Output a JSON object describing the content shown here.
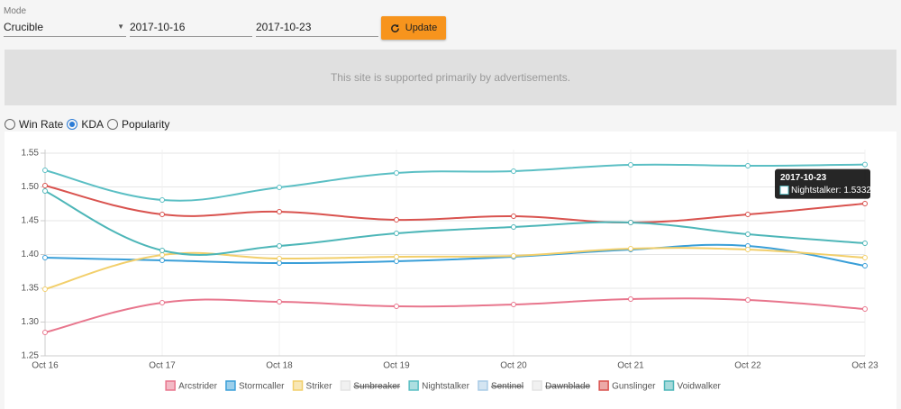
{
  "form": {
    "mode_label": "Mode",
    "mode": "Crucible",
    "start_date": "2017-10-16",
    "end_date": "2017-10-23",
    "button": "Update"
  },
  "ad": "This site is supported primarily by advertisements.",
  "metrics": {
    "options": [
      "Win Rate",
      "KDA",
      "Popularity"
    ],
    "selected": 1
  },
  "chart_data": {
    "type": "line",
    "categories": [
      "Oct 16",
      "Oct 17",
      "Oct 18",
      "Oct 19",
      "Oct 20",
      "Oct 21",
      "Oct 22",
      "Oct 23"
    ],
    "ylim": [
      1.25,
      1.55
    ],
    "yticks": [
      1.25,
      {
        "value": 1.3,
        "label": "1.30"
      },
      1.35,
      {
        "value": 1.4,
        "label": "1.40"
      },
      1.45,
      {
        "value": 1.5,
        "label": "1.50"
      },
      1.55
    ],
    "grid": true,
    "legend": "bottom",
    "series": [
      {
        "name": "Arcstrider",
        "color": "#e8768d",
        "values": [
          1.2847,
          1.3287,
          1.33,
          1.3233,
          1.326,
          1.334,
          1.3327,
          1.3193
        ]
      },
      {
        "name": "Stormcaller",
        "color": "#3a9fd8",
        "values": [
          1.3953,
          1.3913,
          1.3873,
          1.39,
          1.3967,
          1.4073,
          1.4127,
          1.3833
        ]
      },
      {
        "name": "Striker",
        "color": "#f2cf6b",
        "values": [
          1.3487,
          1.3993,
          1.394,
          1.3967,
          1.398,
          1.4087,
          1.4073,
          1.3953
        ]
      },
      {
        "name": "Sunbreaker",
        "color": "#e4e4e4",
        "hidden": true,
        "values": [
          null,
          null,
          null,
          null,
          null,
          null,
          null,
          null
        ]
      },
      {
        "name": "Nightstalker",
        "color": "#5bbfc4",
        "values": [
          1.5247,
          1.4807,
          1.4993,
          1.5207,
          1.5233,
          1.5327,
          1.5313,
          1.5332
        ]
      },
      {
        "name": "Sentinel",
        "color": "#a9cbe6",
        "hidden": true,
        "values": [
          null,
          null,
          null,
          null,
          null,
          null,
          null,
          null
        ]
      },
      {
        "name": "Dawnblade",
        "color": "#e4e4e4",
        "hidden": true,
        "values": [
          null,
          null,
          null,
          null,
          null,
          null,
          null,
          null
        ]
      },
      {
        "name": "Gunslinger",
        "color": "#d9534f",
        "values": [
          1.502,
          1.4593,
          1.4633,
          1.4513,
          1.4567,
          1.4473,
          1.4593,
          1.4753
        ]
      },
      {
        "name": "Voidwalker",
        "color": "#4db6b8",
        "values": [
          1.494,
          1.406,
          1.4127,
          1.4313,
          1.4407,
          1.4473,
          1.43,
          1.4167
        ]
      }
    ],
    "tooltip": {
      "title": "2017-10-23",
      "text": "Nightstalker: 1.5332",
      "series": 4,
      "index": 7
    }
  }
}
